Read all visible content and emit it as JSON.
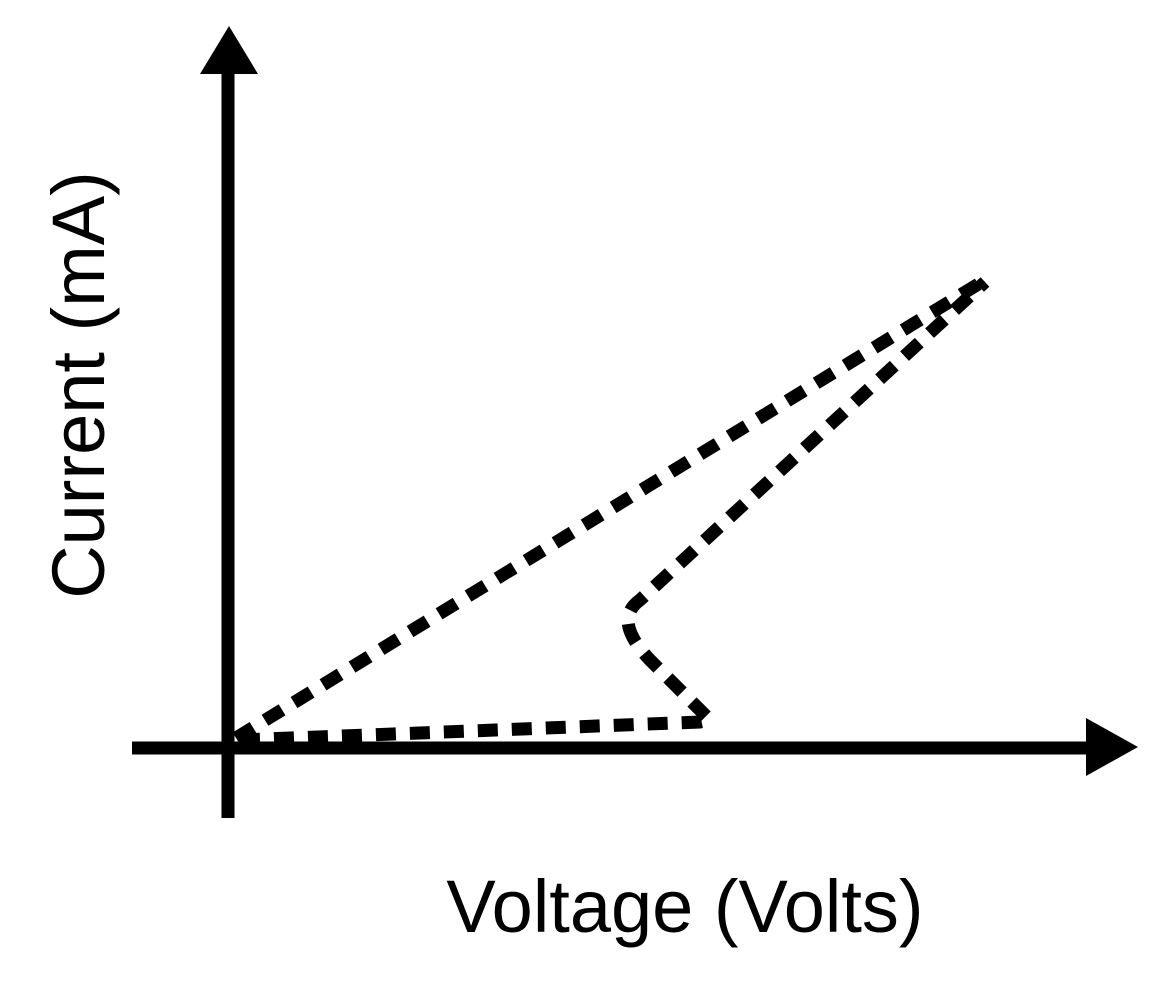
{
  "axes": {
    "x_label": "Voltage (Volts)",
    "y_label": "Current (mA)"
  }
}
